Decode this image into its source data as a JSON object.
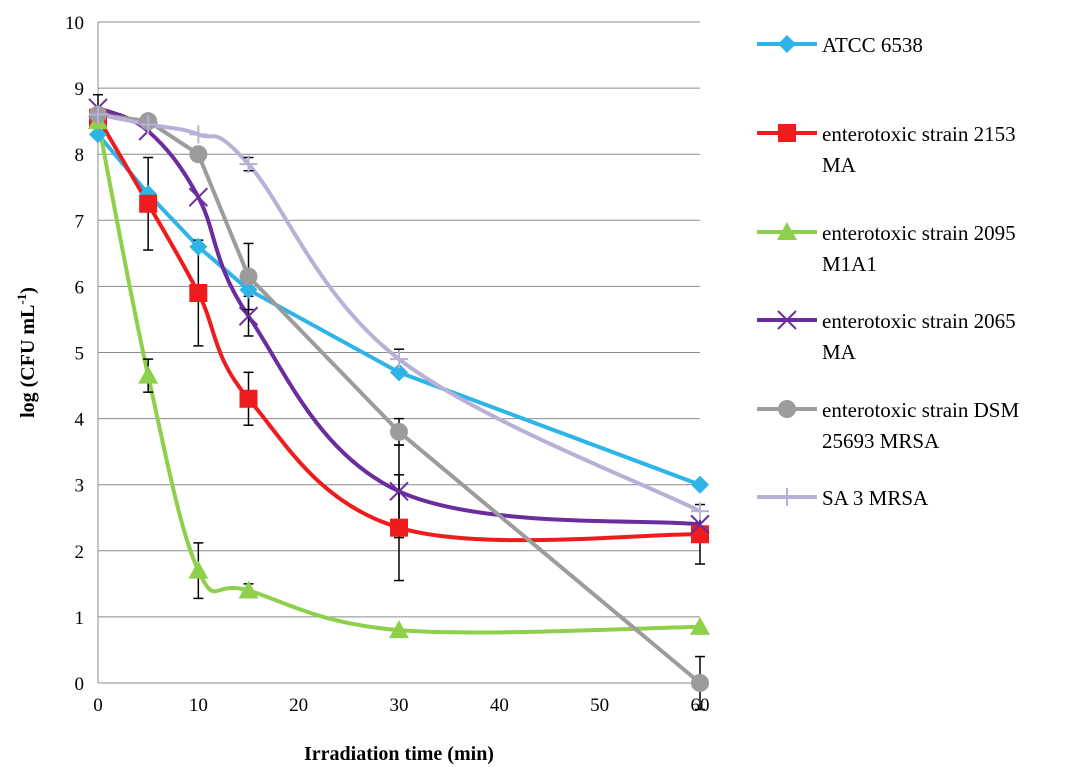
{
  "chart_data": {
    "type": "line",
    "title": "",
    "xlabel": "Irradiation time (min)",
    "ylabel": "log (CFU mL",
    "ylabel_superscript": "-1",
    "ylabel_close": ")",
    "xlim": [
      0,
      60
    ],
    "ylim": [
      0,
      10
    ],
    "x_ticks": [
      0,
      10,
      20,
      30,
      40,
      50,
      60
    ],
    "y_ticks": [
      0,
      1,
      2,
      3,
      4,
      5,
      6,
      7,
      8,
      9,
      10
    ],
    "grid": "horizontal",
    "legend_position": "right",
    "x": [
      0,
      5,
      10,
      15,
      30,
      60
    ],
    "series": [
      {
        "name": "ATCC 6538",
        "legend_lines": [
          "ATCC 6538"
        ],
        "color": "#2eb4e6",
        "marker": "diamond",
        "smooth": false,
        "values": [
          8.3,
          7.4,
          6.6,
          5.95,
          4.7,
          3.0
        ],
        "errors": [
          0,
          0,
          0,
          0,
          0,
          0
        ]
      },
      {
        "name": "enterotoxic strain 2153 MA",
        "legend_lines": [
          "enterotoxic strain 2153",
          "MA"
        ],
        "color": "#ee1c1c",
        "marker": "square",
        "smooth": true,
        "values": [
          8.55,
          7.25,
          5.9,
          4.3,
          2.35,
          2.25
        ],
        "errors": [
          0,
          0.7,
          0.8,
          0.4,
          0.8,
          0.45
        ]
      },
      {
        "name": "enterotoxic strain 2095 M1A1",
        "legend_lines": [
          "enterotoxic strain 2095",
          "M1A1"
        ],
        "color": "#8ed04c",
        "marker": "triangle",
        "smooth": true,
        "values": [
          8.5,
          4.65,
          1.7,
          1.4,
          0.8,
          0.85
        ],
        "errors": [
          0,
          0.25,
          0.42,
          0.1,
          0,
          0
        ]
      },
      {
        "name": "enterotoxic strain 2065 MA",
        "legend_lines": [
          "enterotoxic strain 2065",
          "MA"
        ],
        "color": "#6b2c9e",
        "marker": "x",
        "smooth": true,
        "values": [
          8.7,
          8.35,
          7.35,
          5.55,
          2.9,
          2.4
        ],
        "errors": [
          0,
          0,
          0,
          0.3,
          0.7,
          0
        ]
      },
      {
        "name": "enterotoxic strain DSM 25693 MRSA",
        "legend_lines": [
          "enterotoxic strain DSM",
          "25693 MRSA"
        ],
        "color": "#9c9c9c",
        "marker": "circle",
        "smooth": false,
        "values": [
          8.6,
          8.5,
          8.0,
          6.15,
          3.8,
          0.0
        ],
        "errors": [
          0.3,
          0,
          0,
          0.5,
          0.2,
          0.4
        ]
      },
      {
        "name": "SA 3 MRSA",
        "legend_lines": [
          "SA 3 MRSA"
        ],
        "color": "#b8b0d6",
        "marker": "plus",
        "smooth": true,
        "values": [
          8.6,
          8.45,
          8.3,
          7.85,
          4.9,
          2.6
        ],
        "errors": [
          0,
          0,
          0,
          0.1,
          0.15,
          0
        ]
      }
    ]
  }
}
